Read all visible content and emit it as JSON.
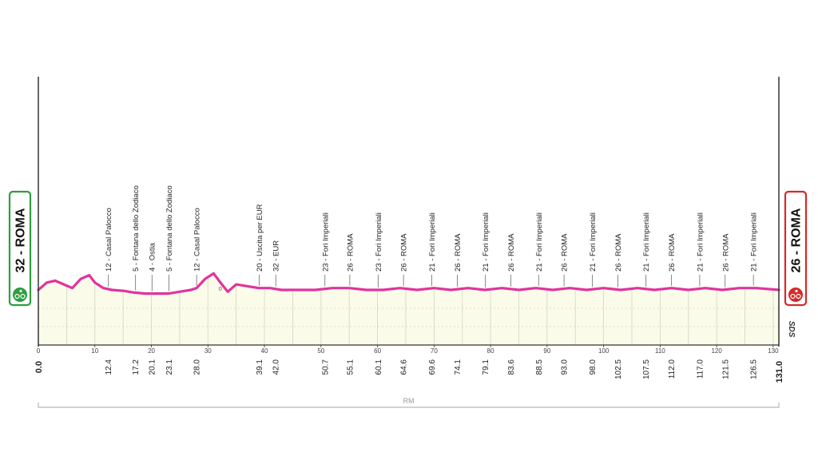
{
  "chart_data": {
    "type": "area",
    "start": {
      "label": "32 - ROMA",
      "km": "0.0",
      "color": "#2e9e3e"
    },
    "finish": {
      "label": "26 - ROMA",
      "km": "131.0",
      "color": "#d42a2a"
    },
    "xlim": [
      0,
      131
    ],
    "x_ticks": [
      "0",
      "10",
      "20",
      "30",
      "40",
      "50",
      "60",
      "70",
      "80",
      "90",
      "100",
      "110",
      "120",
      "130"
    ],
    "profile": {
      "x": [
        0,
        1.5,
        3,
        4.5,
        6,
        7.5,
        9,
        10,
        11.5,
        13,
        15,
        17,
        19,
        21,
        23,
        25,
        27,
        28,
        29.5,
        31,
        32.2,
        33.5,
        35,
        37,
        39,
        41,
        43,
        46,
        49,
        52,
        55,
        58,
        61,
        64,
        67,
        70,
        73,
        76,
        79,
        82,
        85,
        88,
        91,
        94,
        97,
        100,
        103,
        106,
        109,
        112,
        115,
        118,
        121,
        124,
        127,
        131
      ],
      "y": [
        30,
        34,
        35,
        33,
        31,
        36,
        38,
        34,
        31,
        30,
        29.5,
        28.5,
        28,
        28,
        28,
        29,
        30,
        31,
        36,
        39,
        34,
        29,
        33,
        32,
        31,
        31,
        30,
        30,
        30,
        31,
        31,
        30,
        30,
        31,
        30,
        31,
        30,
        31,
        30,
        31,
        30,
        31,
        30,
        31,
        30,
        31,
        30,
        31,
        30,
        31,
        30,
        31,
        30,
        31,
        31,
        30
      ],
      "color": "#e0349c",
      "marker": {
        "x": 32.2,
        "label": "0"
      }
    },
    "waypoints": [
      {
        "km": 12.4,
        "km_label": "12.4",
        "label": "12 - Casal Palocco"
      },
      {
        "km": 17.2,
        "km_label": "17.2",
        "label": "5 - Fontana dello Zodiaco"
      },
      {
        "km": 20.1,
        "km_label": "20.1",
        "label": "4 - Ostia"
      },
      {
        "km": 23.1,
        "km_label": "23.1",
        "label": "5 - Fontana dello Zodiaco"
      },
      {
        "km": 28.0,
        "km_label": "28.0",
        "label": "12 - Casal Palocco"
      },
      {
        "km": 39.1,
        "km_label": "39.1",
        "label": "20 - Uscita per EUR"
      },
      {
        "km": 42.0,
        "km_label": "42.0",
        "label": "32 - EUR"
      },
      {
        "km": 50.7,
        "km_label": "50.7",
        "label": "23 - Fori Imperiali"
      },
      {
        "km": 55.1,
        "km_label": "55.1",
        "label": "26 - ROMA"
      },
      {
        "km": 60.1,
        "km_label": "60.1",
        "label": "23 - Fori Imperiali"
      },
      {
        "km": 64.6,
        "km_label": "64.6",
        "label": "26 - ROMA"
      },
      {
        "km": 69.6,
        "km_label": "69.6",
        "label": "21 - Fori Imperiali"
      },
      {
        "km": 74.1,
        "km_label": "74.1",
        "label": "26 - ROMA"
      },
      {
        "km": 79.1,
        "km_label": "79.1",
        "label": "21 - Fori Imperiali"
      },
      {
        "km": 83.6,
        "km_label": "83.6",
        "label": "26 - ROMA"
      },
      {
        "km": 88.5,
        "km_label": "88.5",
        "label": "21 - Fori Imperiali"
      },
      {
        "km": 93.0,
        "km_label": "93.0",
        "label": "26 - ROMA"
      },
      {
        "km": 98.0,
        "km_label": "98.0",
        "label": "21 - Fori Imperiali"
      },
      {
        "km": 102.5,
        "km_label": "102.5",
        "label": "26 - ROMA"
      },
      {
        "km": 107.5,
        "km_label": "107.5",
        "label": "21 - Fori Imperiali"
      },
      {
        "km": 112.0,
        "km_label": "112.0",
        "label": "26 - ROMA"
      },
      {
        "km": 117.0,
        "km_label": "117.0",
        "label": "21 - Fori Imperiali"
      },
      {
        "km": 121.5,
        "km_label": "121.5",
        "label": "26 - ROMA"
      },
      {
        "km": 126.5,
        "km_label": "126.5",
        "label": "21 - Fori Imperiali"
      }
    ],
    "province_band": "RM",
    "logo_text": "SDS",
    "colors": {
      "fill": "#fbfbe9",
      "grid": "#d4d4c2",
      "axis": "#333333",
      "band": "#b8b8b8"
    }
  }
}
